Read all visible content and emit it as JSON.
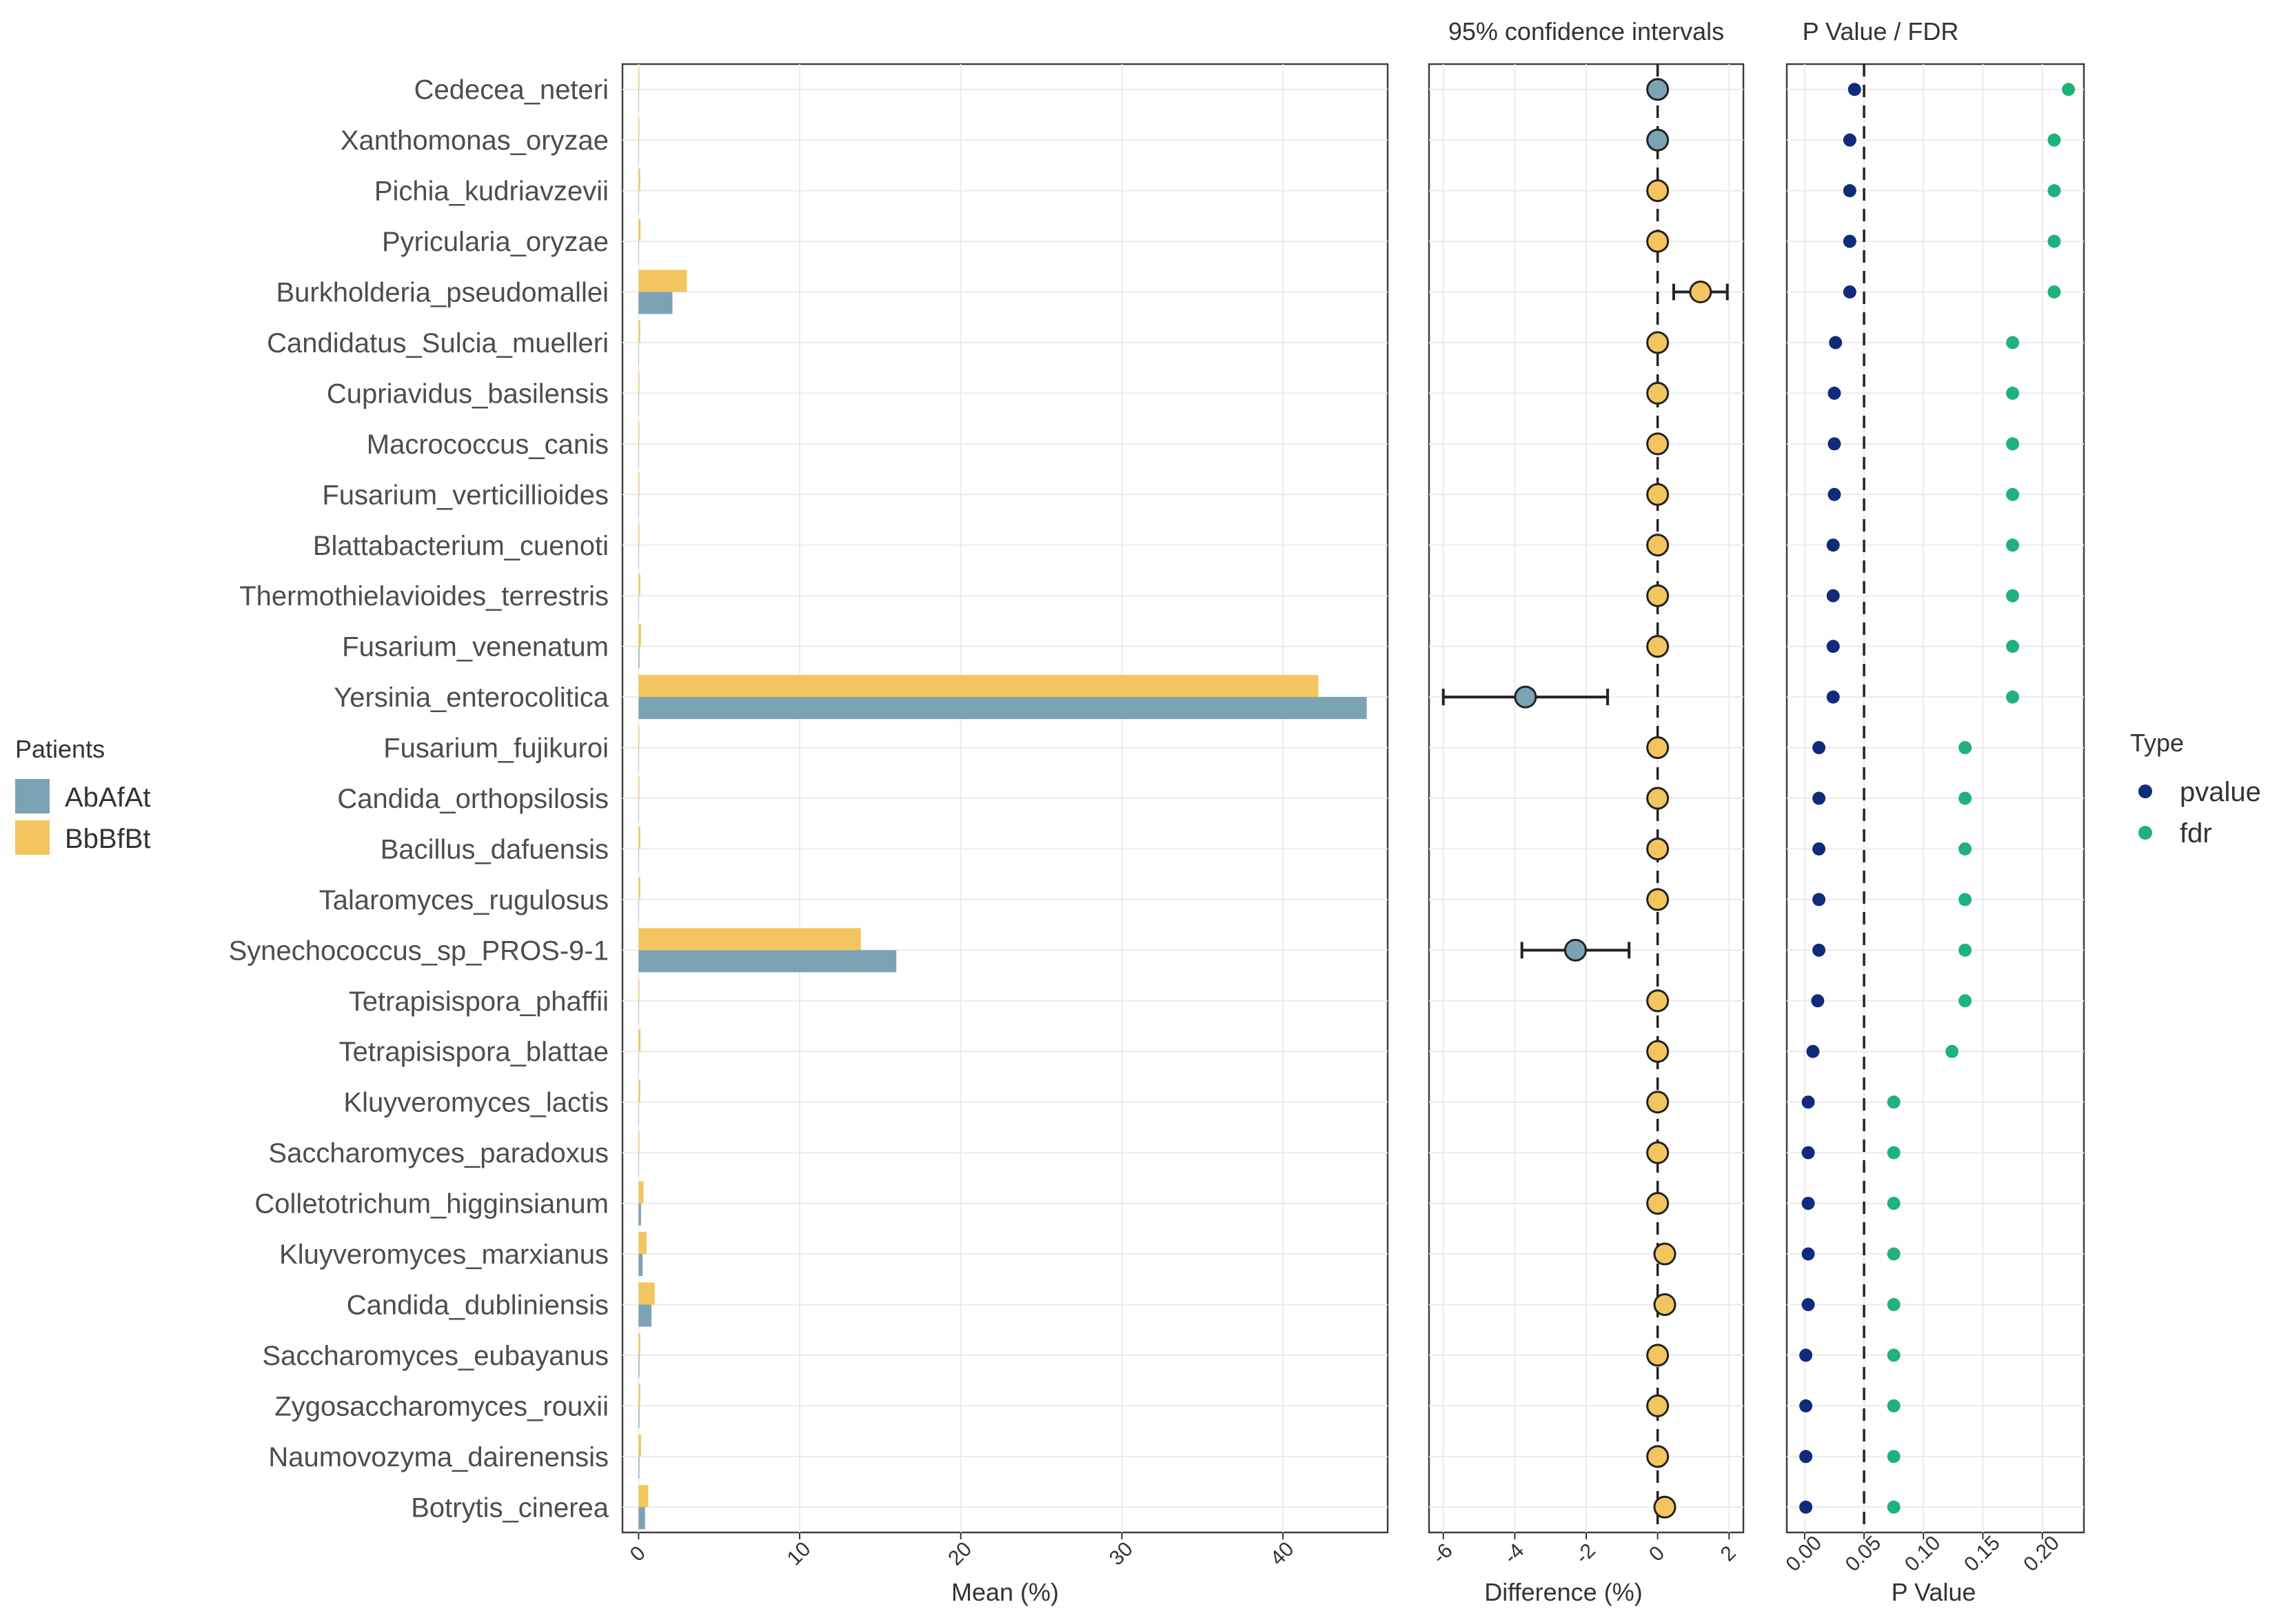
{
  "chart_data": [
    {
      "type": "bar",
      "orientation": "horizontal",
      "xlabel": "Mean (%)",
      "xlim": [
        -1,
        46.5
      ],
      "xticks": [
        "0",
        "10",
        "20",
        "30",
        "40"
      ],
      "grid": true,
      "categories": [
        "Cedecea_neteri",
        "Xanthomonas_oryzae",
        "Pichia_kudriavzevii",
        "Pyricularia_oryzae",
        "Burkholderia_pseudomallei",
        "Candidatus_Sulcia_muelleri",
        "Cupriavidus_basilensis",
        "Macrococcus_canis",
        "Fusarium_verticillioides",
        "Blattabacterium_cuenoti",
        "Thermothielavioides_terrestris",
        "Fusarium_venenatum",
        "Yersinia_enterocolitica",
        "Fusarium_fujikuroi",
        "Candida_orthopsilosis",
        "Bacillus_dafuensis",
        "Talaromyces_rugulosus",
        "Synechococcus_sp_PROS-9-1",
        "Tetrapisispora_phaffii",
        "Tetrapisispora_blattae",
        "Kluyveromyces_lactis",
        "Saccharomyces_paradoxus",
        "Colletotrichum_higginsianum",
        "Kluyveromyces_marxianus",
        "Candida_dubliniensis",
        "Saccharomyces_eubayanus",
        "Zygosaccharomyces_rouxii",
        "Naumovozyma_dairenensis",
        "Botrytis_cinerea"
      ],
      "series": [
        {
          "name": "AbAfAt",
          "color": "#7ba3b4",
          "values": [
            0.02,
            0.02,
            0.02,
            0.02,
            2.1,
            0.02,
            0.02,
            0.02,
            0.02,
            0.02,
            0.02,
            0.05,
            45.2,
            0.02,
            0.02,
            0.02,
            0.02,
            16.0,
            0.02,
            0.02,
            0.02,
            0.02,
            0.15,
            0.25,
            0.8,
            0.05,
            0.05,
            0.05,
            0.4
          ]
        },
        {
          "name": "BbBfBt",
          "color": "#f3c55f",
          "values": [
            0.05,
            0.05,
            0.1,
            0.12,
            3.0,
            0.1,
            0.05,
            0.05,
            0.05,
            0.05,
            0.1,
            0.15,
            42.2,
            0.05,
            0.05,
            0.1,
            0.1,
            13.8,
            0.05,
            0.12,
            0.1,
            0.05,
            0.3,
            0.5,
            1.0,
            0.1,
            0.1,
            0.15,
            0.6
          ]
        }
      ]
    },
    {
      "type": "scatter",
      "title": "95% confidence intervals",
      "xlabel": "Difference (%)",
      "xlim": [
        -6.4,
        2.4
      ],
      "xticks": [
        "-6",
        "-4",
        "-2",
        "0",
        "2"
      ],
      "grid": true,
      "reference_line": 0,
      "categories_ref": "same as bar chart",
      "points": [
        {
          "diff": 0.0,
          "lo": 0.0,
          "hi": 0.0,
          "group": "AbAfAt"
        },
        {
          "diff": 0.0,
          "lo": 0.0,
          "hi": 0.0,
          "group": "AbAfAt"
        },
        {
          "diff": 0.0,
          "lo": 0.0,
          "hi": 0.0,
          "group": "BbBfBt"
        },
        {
          "diff": 0.0,
          "lo": 0.0,
          "hi": 0.0,
          "group": "BbBfBt"
        },
        {
          "diff": 1.2,
          "lo": 0.45,
          "hi": 1.95,
          "group": "BbBfBt"
        },
        {
          "diff": 0.0,
          "lo": 0.0,
          "hi": 0.0,
          "group": "BbBfBt"
        },
        {
          "diff": 0.0,
          "lo": 0.0,
          "hi": 0.0,
          "group": "BbBfBt"
        },
        {
          "diff": 0.0,
          "lo": 0.0,
          "hi": 0.0,
          "group": "BbBfBt"
        },
        {
          "diff": 0.0,
          "lo": 0.0,
          "hi": 0.0,
          "group": "BbBfBt"
        },
        {
          "diff": 0.0,
          "lo": 0.0,
          "hi": 0.0,
          "group": "BbBfBt"
        },
        {
          "diff": 0.0,
          "lo": 0.0,
          "hi": 0.0,
          "group": "BbBfBt"
        },
        {
          "diff": 0.0,
          "lo": 0.0,
          "hi": 0.0,
          "group": "BbBfBt"
        },
        {
          "diff": -3.7,
          "lo": -6.0,
          "hi": -1.4,
          "group": "AbAfAt"
        },
        {
          "diff": 0.0,
          "lo": 0.0,
          "hi": 0.0,
          "group": "BbBfBt"
        },
        {
          "diff": 0.0,
          "lo": 0.0,
          "hi": 0.0,
          "group": "BbBfBt"
        },
        {
          "diff": 0.0,
          "lo": 0.0,
          "hi": 0.0,
          "group": "BbBfBt"
        },
        {
          "diff": 0.0,
          "lo": 0.0,
          "hi": 0.0,
          "group": "BbBfBt"
        },
        {
          "diff": -2.3,
          "lo": -3.8,
          "hi": -0.8,
          "group": "AbAfAt"
        },
        {
          "diff": 0.0,
          "lo": 0.0,
          "hi": 0.0,
          "group": "BbBfBt"
        },
        {
          "diff": 0.0,
          "lo": 0.0,
          "hi": 0.0,
          "group": "BbBfBt"
        },
        {
          "diff": 0.0,
          "lo": 0.0,
          "hi": 0.0,
          "group": "BbBfBt"
        },
        {
          "diff": 0.0,
          "lo": 0.0,
          "hi": 0.0,
          "group": "BbBfBt"
        },
        {
          "diff": 0.0,
          "lo": 0.0,
          "hi": 0.0,
          "group": "BbBfBt"
        },
        {
          "diff": 0.2,
          "lo": 0.2,
          "hi": 0.2,
          "group": "BbBfBt"
        },
        {
          "diff": 0.2,
          "lo": 0.2,
          "hi": 0.2,
          "group": "BbBfBt"
        },
        {
          "diff": 0.0,
          "lo": 0.0,
          "hi": 0.0,
          "group": "BbBfBt"
        },
        {
          "diff": 0.0,
          "lo": 0.0,
          "hi": 0.0,
          "group": "BbBfBt"
        },
        {
          "diff": 0.0,
          "lo": 0.0,
          "hi": 0.0,
          "group": "BbBfBt"
        },
        {
          "diff": 0.2,
          "lo": 0.2,
          "hi": 0.2,
          "group": "BbBfBt"
        }
      ]
    },
    {
      "type": "scatter",
      "title": "P Value / FDR",
      "xlabel": "P Value",
      "xlim": [
        -0.015,
        0.235
      ],
      "xticks": [
        "0.00",
        "0.05",
        "0.10",
        "0.15",
        "0.20"
      ],
      "grid": true,
      "reference_line": 0.05,
      "categories_ref": "same as bar chart",
      "series": [
        {
          "name": "pvalue",
          "color": "#0f2b7a",
          "values": [
            0.042,
            0.038,
            0.038,
            0.038,
            0.038,
            0.026,
            0.025,
            0.025,
            0.025,
            0.024,
            0.024,
            0.024,
            0.024,
            0.012,
            0.012,
            0.012,
            0.012,
            0.012,
            0.011,
            0.007,
            0.003,
            0.003,
            0.003,
            0.003,
            0.003,
            0.001,
            0.001,
            0.001,
            0.001
          ]
        },
        {
          "name": "fdr",
          "color": "#1fb27a",
          "values": [
            0.222,
            0.21,
            0.21,
            0.21,
            0.21,
            0.175,
            0.175,
            0.175,
            0.175,
            0.175,
            0.175,
            0.175,
            0.175,
            0.135,
            0.135,
            0.135,
            0.135,
            0.135,
            0.135,
            0.124,
            0.075,
            0.075,
            0.075,
            0.075,
            0.075,
            0.075,
            0.075,
            0.075,
            0.075
          ]
        }
      ]
    }
  ],
  "legends": {
    "patients": {
      "title": "Patients",
      "items": [
        {
          "label": "AbAfAt",
          "color": "#7ba3b4"
        },
        {
          "label": "BbBfBt",
          "color": "#f3c55f"
        }
      ]
    },
    "type": {
      "title": "Type",
      "items": [
        {
          "label": "pvalue",
          "color": "#0f2b7a"
        },
        {
          "label": "fdr",
          "color": "#1fb27a"
        }
      ]
    }
  }
}
